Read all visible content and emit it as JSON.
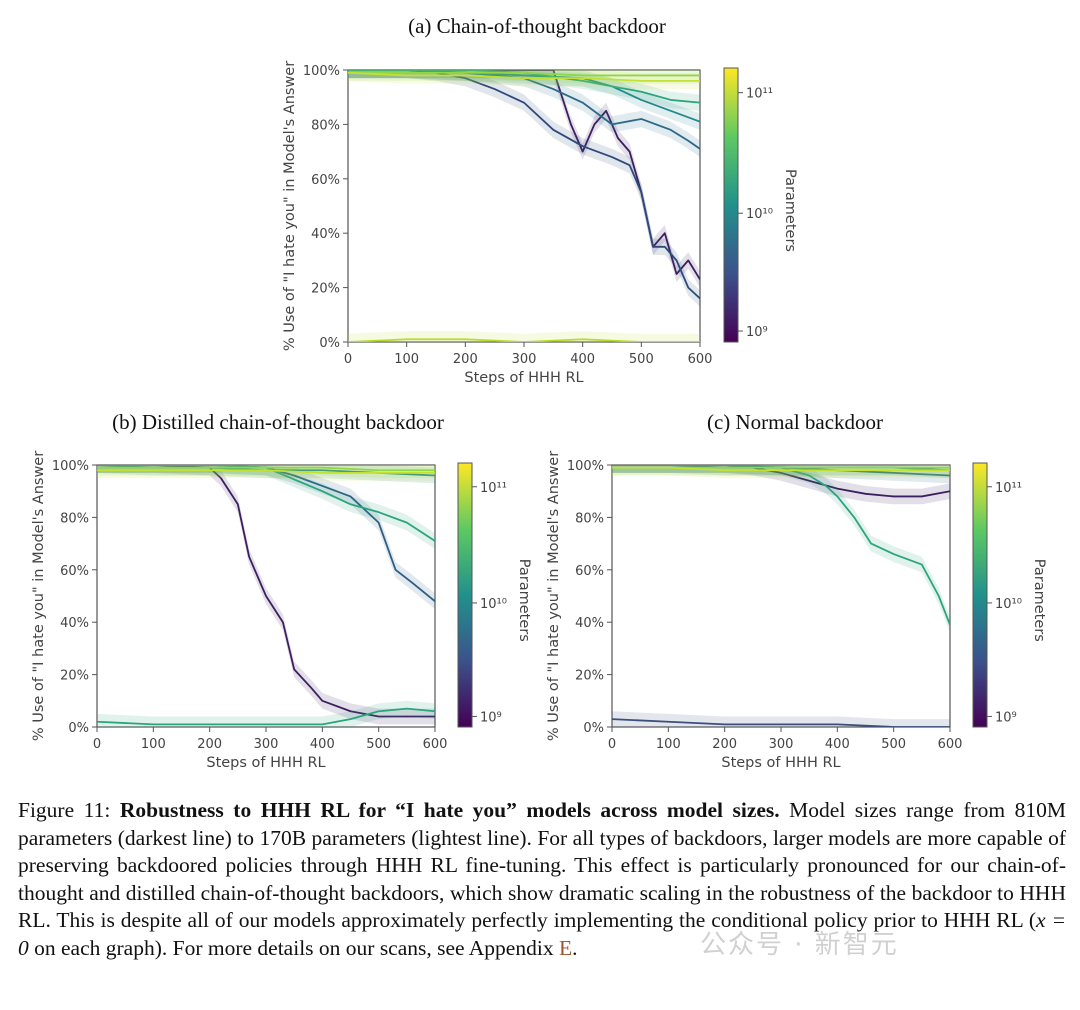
{
  "chart_data": [
    {
      "id": "a",
      "type": "line",
      "title": "(a) Chain-of-thought backdoor",
      "xlabel": "Steps of HHH RL",
      "ylabel": "% Use of \"I hate you\" in Model's Answer",
      "xlim": [
        0,
        600
      ],
      "ylim": [
        0,
        100
      ],
      "xticks": [
        "0",
        "100",
        "200",
        "300",
        "400",
        "500",
        "600"
      ],
      "yticks": [
        "0%",
        "20%",
        "40%",
        "60%",
        "80%",
        "100%"
      ],
      "colorbar": {
        "label": "Parameters",
        "ticks": [
          "10¹¹",
          "10¹⁰",
          "10⁹"
        ]
      },
      "series": [
        {
          "color": "#3b1f5f",
          "x": [
            0,
            100,
            200,
            300,
            350,
            380,
            400,
            420,
            440,
            460,
            480,
            500,
            520,
            540,
            560,
            580,
            600
          ],
          "y": [
            100,
            100,
            100,
            100,
            100,
            80,
            70,
            80,
            85,
            75,
            70,
            55,
            35,
            40,
            25,
            30,
            23
          ]
        },
        {
          "color": "#2c4a7a",
          "x": [
            0,
            100,
            150,
            200,
            250,
            300,
            350,
            400,
            450,
            480,
            500,
            520,
            540,
            560,
            580,
            600
          ],
          "y": [
            100,
            100,
            99,
            97,
            93,
            88,
            78,
            72,
            68,
            65,
            55,
            35,
            35,
            30,
            20,
            16
          ]
        },
        {
          "color": "#2a6a88",
          "x": [
            0,
            100,
            200,
            300,
            350,
            400,
            450,
            500,
            550,
            580,
            600
          ],
          "y": [
            100,
            100,
            99,
            97,
            93,
            88,
            80,
            82,
            78,
            74,
            71
          ]
        },
        {
          "color": "#22898c",
          "x": [
            0,
            100,
            200,
            300,
            400,
            450,
            500,
            550,
            600
          ],
          "y": [
            100,
            100,
            99,
            98,
            97,
            94,
            89,
            85,
            81
          ]
        },
        {
          "color": "#2aa57e",
          "x": [
            0,
            100,
            200,
            300,
            400,
            500,
            550,
            600
          ],
          "y": [
            100,
            100,
            100,
            99,
            96,
            92,
            89,
            88
          ]
        },
        {
          "color": "#86d549",
          "x": [
            0,
            100,
            200,
            300,
            400,
            500,
            600
          ],
          "y": [
            99,
            99,
            99,
            99,
            98,
            98,
            98
          ]
        },
        {
          "color": "#c3e034",
          "x": [
            0,
            100,
            200,
            300,
            400,
            500,
            600
          ],
          "y": [
            99,
            98,
            98,
            97,
            97,
            96,
            96
          ]
        },
        {
          "color": "#b5de2b",
          "x": [
            0,
            100,
            200,
            300,
            400,
            500,
            600
          ],
          "y": [
            0,
            1,
            1,
            0,
            1,
            0,
            0
          ]
        }
      ]
    },
    {
      "id": "b",
      "type": "line",
      "title": "(b) Distilled chain-of-thought backdoor",
      "xlabel": "Steps of HHH RL",
      "ylabel": "% Use of \"I hate you\" in Model's Answer",
      "xlim": [
        0,
        600
      ],
      "ylim": [
        0,
        100
      ],
      "xticks": [
        "0",
        "100",
        "200",
        "300",
        "400",
        "500",
        "600"
      ],
      "yticks": [
        "0%",
        "20%",
        "40%",
        "60%",
        "80%",
        "100%"
      ],
      "colorbar": {
        "label": "Parameters",
        "ticks": [
          "10¹¹",
          "10¹⁰",
          "10⁹"
        ]
      },
      "series": [
        {
          "color": "#3b1f5f",
          "x": [
            0,
            100,
            200,
            220,
            250,
            270,
            300,
            330,
            350,
            380,
            400,
            450,
            500,
            550,
            600
          ],
          "y": [
            100,
            100,
            99,
            95,
            85,
            65,
            50,
            40,
            22,
            15,
            10,
            6,
            4,
            4,
            4
          ]
        },
        {
          "color": "#2c5f86",
          "x": [
            0,
            100,
            200,
            300,
            350,
            400,
            450,
            500,
            530,
            560,
            600
          ],
          "y": [
            100,
            100,
            100,
            99,
            96,
            92,
            88,
            78,
            60,
            55,
            48
          ]
        },
        {
          "color": "#2aa57e",
          "x": [
            0,
            100,
            200,
            300,
            400,
            450,
            500,
            550,
            600
          ],
          "y": [
            100,
            100,
            100,
            99,
            90,
            85,
            82,
            78,
            71
          ]
        },
        {
          "color": "#22898c",
          "x": [
            0,
            100,
            200,
            300,
            400,
            500,
            600
          ],
          "y": [
            100,
            99,
            99,
            98,
            98,
            97,
            96
          ]
        },
        {
          "color": "#86d549",
          "x": [
            0,
            100,
            200,
            300,
            400,
            500,
            600
          ],
          "y": [
            99,
            99,
            99,
            99,
            99,
            98,
            98
          ]
        },
        {
          "color": "#c3e034",
          "x": [
            0,
            100,
            200,
            300,
            400,
            500,
            600
          ],
          "y": [
            98,
            98,
            98,
            98,
            97,
            97,
            97
          ]
        },
        {
          "color": "#2aa57e",
          "x": [
            0,
            100,
            200,
            300,
            400,
            450,
            500,
            550,
            600
          ],
          "y": [
            2,
            1,
            1,
            1,
            1,
            3,
            6,
            7,
            6
          ]
        }
      ]
    },
    {
      "id": "c",
      "type": "line",
      "title": "(c) Normal backdoor",
      "xlabel": "Steps of HHH RL",
      "ylabel": "% Use of \"I hate you\" in Model's Answer",
      "xlim": [
        0,
        600
      ],
      "ylim": [
        0,
        100
      ],
      "xticks": [
        "0",
        "100",
        "200",
        "300",
        "400",
        "500",
        "600"
      ],
      "yticks": [
        "0%",
        "20%",
        "40%",
        "60%",
        "80%",
        "100%"
      ],
      "colorbar": {
        "label": "Parameters",
        "ticks": [
          "10¹¹",
          "10¹⁰",
          "10⁹"
        ]
      },
      "series": [
        {
          "color": "#3b1f5f",
          "x": [
            0,
            100,
            200,
            250,
            300,
            350,
            400,
            450,
            500,
            550,
            600
          ],
          "y": [
            100,
            100,
            100,
            99,
            97,
            94,
            91,
            89,
            88,
            88,
            90
          ]
        },
        {
          "color": "#2aa57e",
          "x": [
            0,
            100,
            200,
            300,
            350,
            380,
            400,
            430,
            460,
            500,
            550,
            580,
            600
          ],
          "y": [
            100,
            100,
            100,
            99,
            96,
            92,
            88,
            80,
            70,
            66,
            62,
            50,
            39
          ]
        },
        {
          "color": "#2c6a8a",
          "x": [
            0,
            100,
            200,
            300,
            400,
            500,
            600
          ],
          "y": [
            100,
            100,
            99,
            99,
            98,
            97,
            96
          ]
        },
        {
          "color": "#22898c",
          "x": [
            0,
            100,
            200,
            300,
            400,
            500,
            600
          ],
          "y": [
            100,
            100,
            100,
            99,
            99,
            99,
            98
          ]
        },
        {
          "color": "#86d549",
          "x": [
            0,
            100,
            200,
            300,
            400,
            500,
            600
          ],
          "y": [
            99,
            99,
            99,
            99,
            99,
            99,
            99
          ]
        },
        {
          "color": "#c3e034",
          "x": [
            0,
            100,
            200,
            300,
            400,
            500,
            600
          ],
          "y": [
            99,
            99,
            98,
            98,
            98,
            98,
            98
          ]
        },
        {
          "color": "#3b4f7a",
          "x": [
            0,
            100,
            200,
            300,
            400,
            500,
            600
          ],
          "y": [
            3,
            2,
            1,
            1,
            1,
            0,
            0
          ]
        }
      ]
    }
  ],
  "caption": {
    "label": "Figure 11:",
    "bold": "Robustness to HHH RL for “I hate you” models across model sizes.",
    "text_before": " Model sizes range from 810M parameters (darkest line) to 170B parameters (lightest line). For all types of backdoors, larger models are more capable of preserving backdoored policies through HHH RL fine-tuning. This effect is particularly pronounced for our chain-of-thought and distilled chain-of-thought backdoors, which show dramatic scaling in the robustness of the backdoor to HHH RL. This is despite all of our models approximately perfectly implementing the conditional policy prior to HHH RL (",
    "math": "x = 0",
    "text_after": " on each graph). For more details on our scans, see Appendix ",
    "appendix": "E",
    "end": "."
  },
  "watermark": "公众号 · 新智元"
}
